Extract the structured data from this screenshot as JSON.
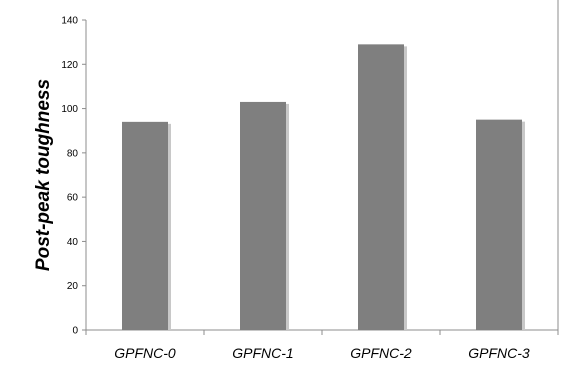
{
  "chart_data": {
    "type": "bar",
    "categories": [
      "GPFNC-0",
      "GPFNC-1",
      "GPFNC-2",
      "GPFNC-3"
    ],
    "values": [
      94,
      103,
      129,
      95
    ],
    "title": "",
    "xlabel": "",
    "ylabel": "Post-peak toughness",
    "ylim": [
      0,
      140
    ],
    "yticks": [
      0,
      20,
      40,
      60,
      80,
      100,
      120,
      140
    ],
    "grid": false,
    "legend": "none",
    "bar_color": "#7f7f7f",
    "bar_shadow_color": "#c8c8c8"
  }
}
